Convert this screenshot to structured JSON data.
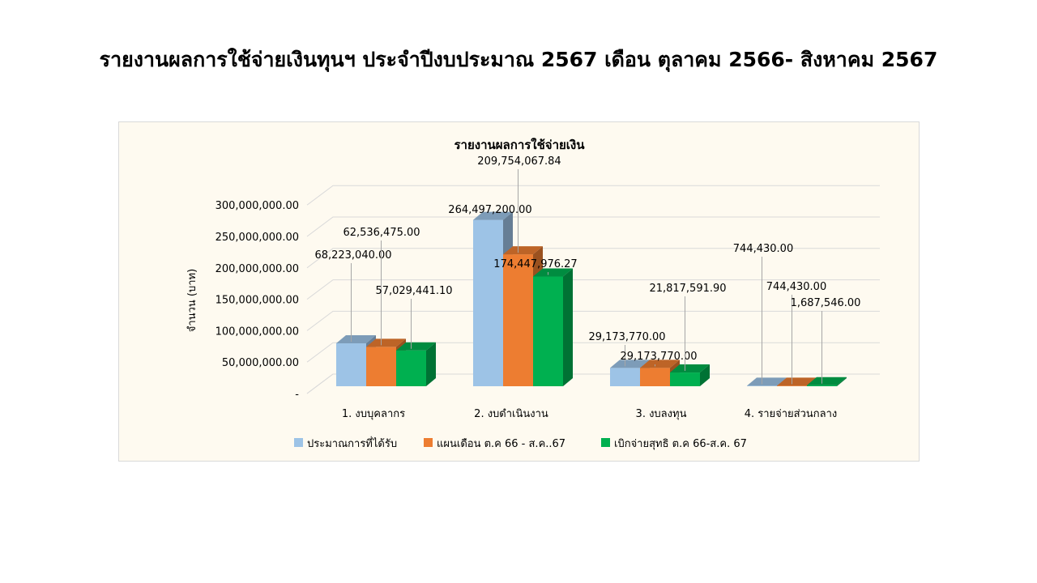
{
  "page_title": "รายงานผลการใช้จ่ายเงินทุนฯ ประจำปีงบประมาณ 2567 เดือน ตุลาคม 2566- สิงหาคม 2567",
  "chart_data": {
    "type": "bar",
    "title": "รายงานผลการใช้จ่ายเงิน",
    "ylabel": "จำนวน (บาท)",
    "xlabel": "",
    "ylim": [
      0,
      300000000
    ],
    "yticks": [
      "-",
      "50,000,000.00",
      "100,000,000.00",
      "150,000,000.00",
      "200,000,000.00",
      "250,000,000.00",
      "300,000,000.00"
    ],
    "grid": true,
    "legend_position": "bottom",
    "categories": [
      "1. งบบุคลากร",
      "2. งบดำเนินงาน",
      "3. งบลงทุน",
      "4. รายจ่ายส่วนกลาง"
    ],
    "series": [
      {
        "name": "ประมาณการที่ได้รับ",
        "color": "#9dc3e6",
        "values": [
          68223040.0,
          264497200.0,
          29173770.0,
          744430.0
        ],
        "labels": [
          "68,223,040.00",
          "264,497,200.00",
          "29,173,770.00",
          "744,430.00"
        ]
      },
      {
        "name": "แผนเดือน ต.ค 66 - ส.ค..67",
        "color": "#ed7d31",
        "values": [
          62536475.0,
          209754067.84,
          29173770.0,
          744430.0
        ],
        "labels": [
          "62,536,475.00",
          "209,754,067.84",
          "29,173,770.00",
          "744,430.00"
        ]
      },
      {
        "name": "เบิกจ่ายสุทธิ ต.ค 66-ส.ค. 67",
        "color": "#00b050",
        "values": [
          57029441.1,
          174447976.27,
          21817591.9,
          1687546.0
        ],
        "labels": [
          "57,029,441.10",
          "174,447,976.27",
          "21,817,591.90",
          "1,687,546.00"
        ]
      }
    ]
  }
}
